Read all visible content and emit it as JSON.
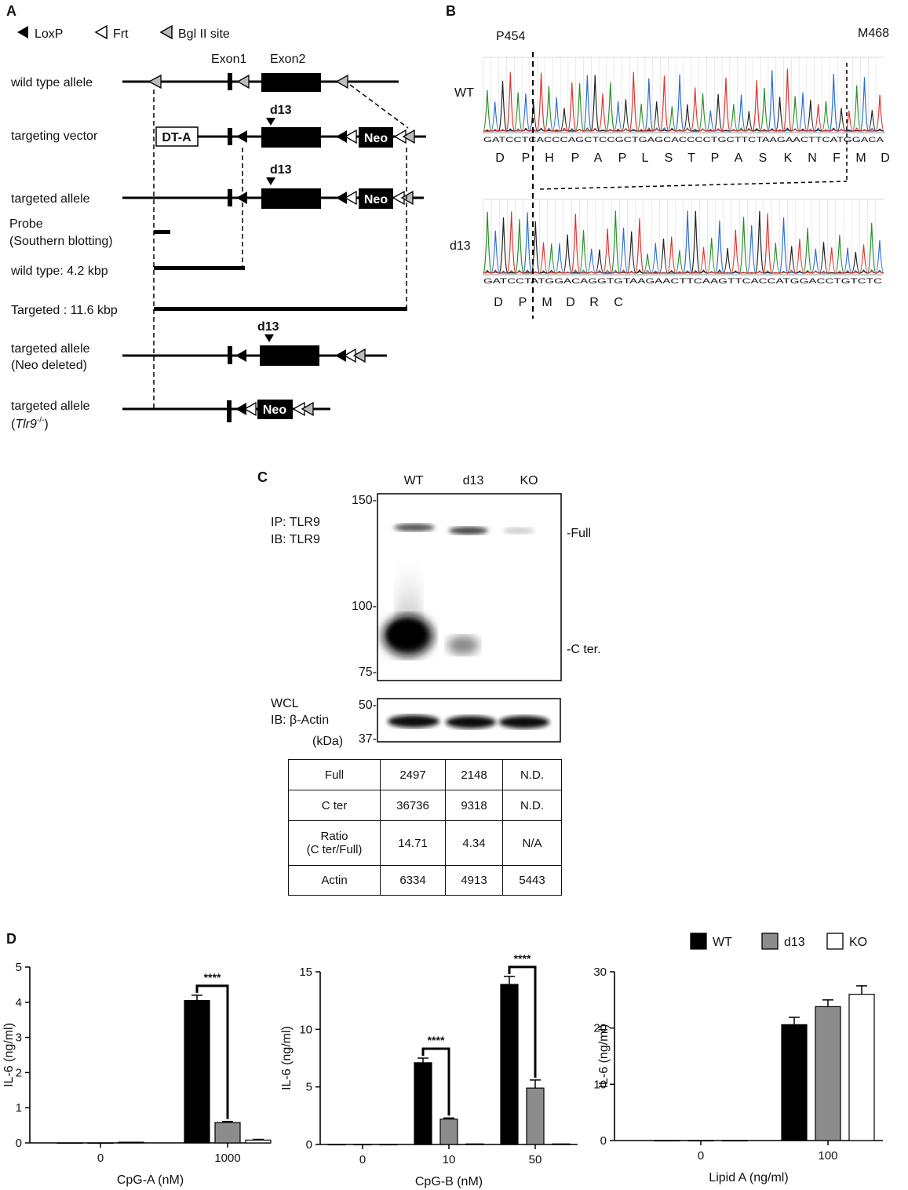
{
  "panels": {
    "A": {
      "letter": "A",
      "legend": [
        "LoxP",
        "Frt",
        "Bgl II site"
      ],
      "exon_labels": [
        "Exon1",
        "Exon2"
      ],
      "rows": {
        "wild_type": "wild type allele",
        "targeting_vector": "targeting vector",
        "targeted_allele": "targeted allele",
        "probe_line1": "Probe",
        "probe_line2": "(Southern blotting)",
        "wt_fragment": "wild type: 4.2 kbp",
        "targeted_fragment": "Targeted : 11.6 kbp",
        "neo_deleted_line1": "targeted allele",
        "neo_deleted_line2": "(Neo deleted)",
        "ko_line1": "targeted allele",
        "ko_gene": "Tlr9",
        "ko_superscript": "-/-"
      },
      "boxes": {
        "dta": "DT-A",
        "neo": "Neo"
      },
      "deletion_label": "d13"
    },
    "B": {
      "letter": "B",
      "marker_left": "P454",
      "marker_right": "M468",
      "wt_label": "WT",
      "d13_label": "d13",
      "wt_sequence": "GATCCTCACCCAGCTCCGCTGAGCACCCCTGCTTCTAAGAACTTCATGGACA",
      "d13_sequence": "GATCCTATGGACAGGTGTAAGAACTTCAAGTTCACCATGGACCTGTCTC",
      "wt_residues": [
        "D",
        "P",
        "H",
        "P",
        "A",
        "P",
        "L",
        "S",
        "T",
        "P",
        "A",
        "S",
        "K",
        "N",
        "F",
        "M",
        "D"
      ],
      "d13_residues": [
        "D",
        "P",
        "M",
        "D",
        "R",
        "C"
      ]
    },
    "C": {
      "letter": "C",
      "lanes": [
        "WT",
        "d13",
        "KO"
      ],
      "ip_line1": "IP: TLR9",
      "ip_line2": "IB: TLR9",
      "mw_top": [
        "150-",
        "100-",
        "75-"
      ],
      "band_full": "-Full",
      "band_cter": "-C ter.",
      "wcl_line1": "WCL",
      "wcl_line2": "IB: β-Actin",
      "mw_actin": [
        "50-",
        "37-"
      ],
      "kda": "(kDa)",
      "table": [
        [
          "Full",
          "2497",
          "2148",
          "N.D."
        ],
        [
          "C ter",
          "36736",
          "9318",
          "N.D."
        ],
        [
          "Ratio\n(C ter/Full)",
          "14.71",
          "4.34",
          "N/A"
        ],
        [
          "Actin",
          "6334",
          "4913",
          "5443"
        ]
      ]
    },
    "D": {
      "letter": "D"
    }
  },
  "chart_data": [
    {
      "type": "bar",
      "categories": [
        "0",
        "1000"
      ],
      "series": [
        {
          "name": "WT",
          "values": [
            0,
            4.05
          ],
          "errors": [
            0,
            0.15
          ],
          "color": "#000000"
        },
        {
          "name": "d13",
          "values": [
            0,
            0.58
          ],
          "errors": [
            0,
            0.03
          ],
          "color": "#8c8c8c"
        },
        {
          "name": "KO",
          "values": [
            0.02,
            0.08
          ],
          "errors": [
            0,
            0.02
          ],
          "color": "#ffffff"
        }
      ],
      "xlabel": "CpG-A (nM)",
      "ylabel": "IL-6 (ng/ml)",
      "ylim": [
        0,
        5
      ],
      "yticks": [
        0,
        1,
        2,
        3,
        4,
        5
      ],
      "significance": [
        {
          "category": "1000",
          "between": [
            "WT",
            "d13"
          ],
          "label": "****"
        }
      ]
    },
    {
      "type": "bar",
      "categories": [
        "0",
        "10",
        "50"
      ],
      "series": [
        {
          "name": "WT",
          "values": [
            0,
            7.1,
            13.9
          ],
          "errors": [
            0,
            0.4,
            0.7
          ],
          "color": "#000000"
        },
        {
          "name": "d13",
          "values": [
            0,
            2.2,
            4.9
          ],
          "errors": [
            0,
            0.1,
            0.7
          ],
          "color": "#8c8c8c"
        },
        {
          "name": "KO",
          "values": [
            0,
            0.05,
            0.05
          ],
          "errors": [
            0,
            0,
            0
          ],
          "color": "#ffffff"
        }
      ],
      "xlabel": "CpG-B (nM)",
      "ylabel": "IL-6 (ng/ml)",
      "ylim": [
        0,
        15
      ],
      "yticks": [
        0,
        5,
        10,
        15
      ],
      "significance": [
        {
          "category": "10",
          "between": [
            "WT",
            "d13"
          ],
          "label": "****"
        },
        {
          "category": "50",
          "between": [
            "WT",
            "d13"
          ],
          "label": "****"
        }
      ]
    },
    {
      "type": "bar",
      "categories": [
        "0",
        "100"
      ],
      "series": [
        {
          "name": "WT",
          "values": [
            0,
            20.6
          ],
          "errors": [
            0,
            1.3
          ],
          "color": "#000000"
        },
        {
          "name": "d13",
          "values": [
            0,
            23.8
          ],
          "errors": [
            0,
            1.2
          ],
          "color": "#8c8c8c"
        },
        {
          "name": "KO",
          "values": [
            0,
            26.0
          ],
          "errors": [
            0,
            1.5
          ],
          "color": "#ffffff"
        }
      ],
      "xlabel": "Lipid A (ng/ml)",
      "ylabel": "IL-6 (ng/ml)",
      "ylim": [
        0,
        30
      ],
      "yticks": [
        0,
        10,
        20,
        30
      ],
      "legend": [
        "WT",
        "d13",
        "KO"
      ],
      "legend_position": "top-right"
    }
  ]
}
